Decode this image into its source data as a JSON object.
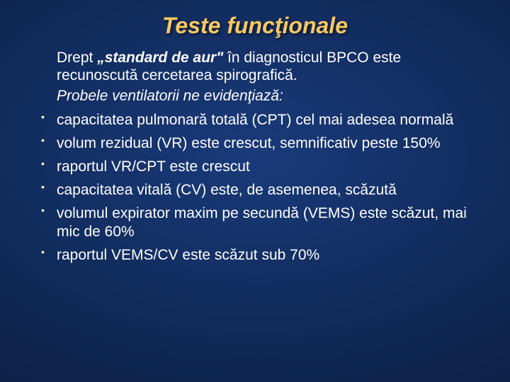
{
  "slide": {
    "background": {
      "center_color": "#1a3a7a",
      "mid_color": "#102a5a",
      "edge_color": "#0a1838"
    },
    "title": {
      "text": "Teste funcţionale",
      "color": "#f8c862",
      "fontsize": 32,
      "italic": true,
      "bold": true
    },
    "intro": {
      "prefix": "Drept ",
      "emphasis": "„standard de aur\"",
      "suffix": " în diagnosticul BPCO este recunoscută cercetarea spirografică.",
      "color": "#ffffff",
      "fontsize": 21
    },
    "subhead": {
      "text": "Probele ventilatorii ne evidenţiază:",
      "color": "#ffffff",
      "fontsize": 21,
      "italic": true
    },
    "bullets": {
      "items": [
        "capacitatea pulmonară totală (CPT) cel mai adesea normală",
        "volum rezidual (VR) este crescut, semnificativ peste 150%",
        "raportul VR/CPT este crescut",
        "capacitatea vitală (CV) este, de asemenea, scăzută",
        "volumul expirator maxim pe secundă (VEMS) este scăzut, mai mic de 60%",
        "raportul VEMS/CV este scăzut sub 70%"
      ],
      "color": "#ffffff",
      "fontsize": 21,
      "bullet_char": "•"
    }
  }
}
